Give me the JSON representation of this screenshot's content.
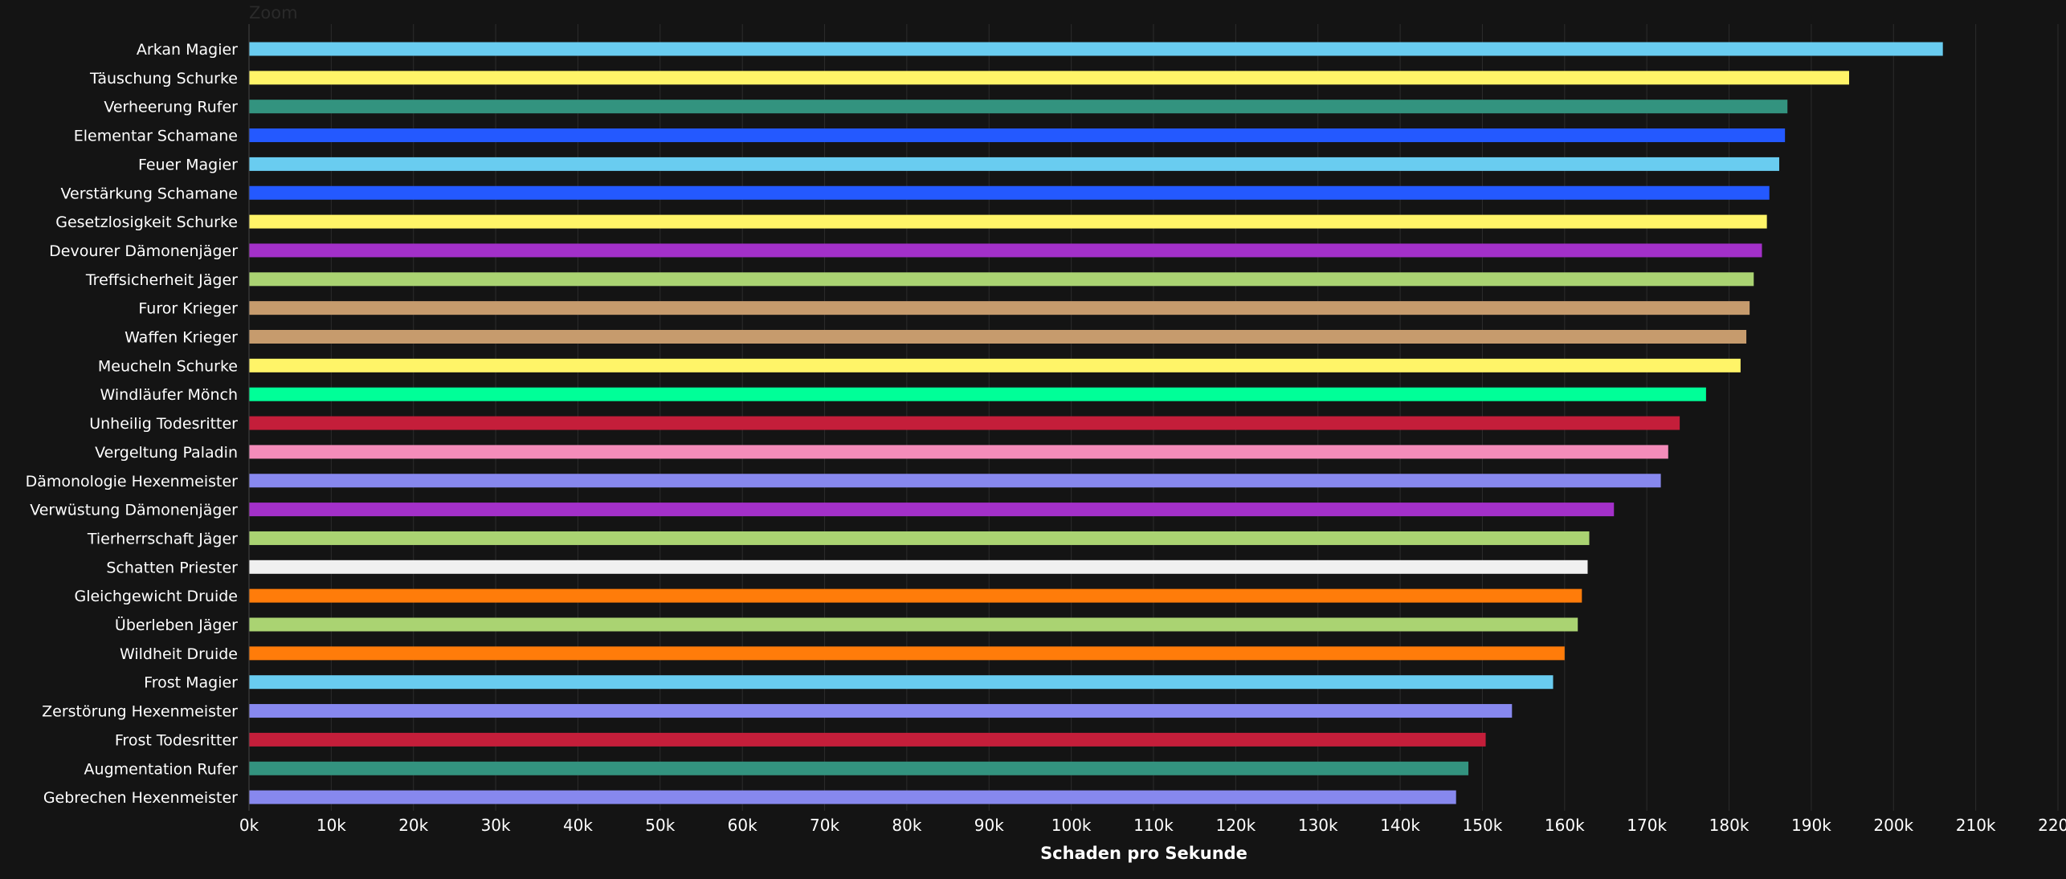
{
  "zoom": "Zoom",
  "chart_data": {
    "type": "bar",
    "orientation": "horizontal",
    "xlabel": "Schaden pro Sekunde",
    "xlim": [
      0,
      220000
    ],
    "grid": true,
    "ticks": [
      "0k",
      "10k",
      "20k",
      "30k",
      "40k",
      "50k",
      "60k",
      "70k",
      "80k",
      "90k",
      "100k",
      "110k",
      "120k",
      "130k",
      "140k",
      "150k",
      "160k",
      "170k",
      "180k",
      "190k",
      "200k",
      "210k",
      "220k"
    ],
    "categories": [
      "Arkan Magier",
      "Täuschung Schurke",
      "Verheerung Rufer",
      "Elementar Schamane",
      "Feuer Magier",
      "Verstärkung Schamane",
      "Gesetzlosigkeit Schurke",
      "Devourer Dämonenjäger",
      "Treffsicherheit Jäger",
      "Furor Krieger",
      "Waffen Krieger",
      "Meucheln Schurke",
      "Windläufer Mönch",
      "Unheilig Todesritter",
      "Vergeltung Paladin",
      "Dämonologie Hexenmeister",
      "Verwüstung Dämonenjäger",
      "Tierherrschaft Jäger",
      "Schatten Priester",
      "Gleichgewicht Druide",
      "Überleben Jäger",
      "Wildheit Druide",
      "Frost Magier",
      "Zerstörung Hexenmeister",
      "Frost Todesritter",
      "Augmentation Rufer",
      "Gebrechen Hexenmeister"
    ],
    "values": [
      206000,
      194600,
      187100,
      186800,
      186100,
      184900,
      184600,
      184000,
      183000,
      182500,
      182100,
      181400,
      177200,
      174000,
      172600,
      171700,
      166000,
      163000,
      162800,
      162100,
      161600,
      160000,
      158600,
      153600,
      150400,
      148300,
      146800
    ],
    "colors": [
      "#69ccf0",
      "#fff468",
      "#33937f",
      "#2459ff",
      "#69ccf0",
      "#2459ff",
      "#fff468",
      "#a330c9",
      "#aad372",
      "#c69b6d",
      "#c69b6d",
      "#fff468",
      "#00ff98",
      "#c41e3a",
      "#f48cba",
      "#8788ee",
      "#a330c9",
      "#aad372",
      "#f0f0f0",
      "#ff7c0a",
      "#aad372",
      "#ff7c0a",
      "#69ccf0",
      "#8788ee",
      "#c41e3a",
      "#33937f",
      "#8788ee"
    ]
  }
}
